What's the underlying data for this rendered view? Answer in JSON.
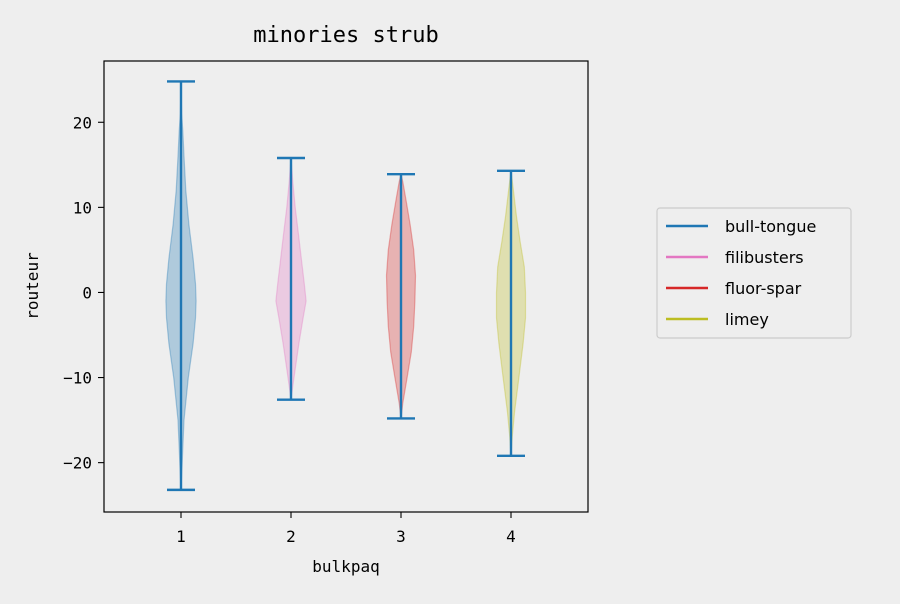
{
  "chart_data": {
    "type": "violin",
    "title": "minories strub",
    "xlabel": "bulkpaq",
    "ylabel": "routeur",
    "x_ticks": [
      "1",
      "2",
      "3",
      "4"
    ],
    "y_ticks": [
      -20,
      -10,
      0,
      10,
      20
    ],
    "ylim": [
      -25.8,
      27.2
    ],
    "xlim": [
      0.3,
      4.7
    ],
    "grid": false,
    "legend_position": "right",
    "series": [
      {
        "name": "bull-tongue",
        "position": 1,
        "color": "#1f77b4",
        "fill": "#1f77b4",
        "max": 24.8,
        "min": -23.2,
        "density": [
          [
            -23.2,
            0
          ],
          [
            -20,
            0.02
          ],
          [
            -15,
            0.05
          ],
          [
            -10,
            0.12
          ],
          [
            -6,
            0.2
          ],
          [
            -3,
            0.24
          ],
          [
            -1,
            0.25
          ],
          [
            1,
            0.24
          ],
          [
            4,
            0.2
          ],
          [
            8,
            0.13
          ],
          [
            12,
            0.08
          ],
          [
            16,
            0.05
          ],
          [
            19,
            0.03
          ],
          [
            21,
            0.01
          ],
          [
            24.8,
            0
          ]
        ]
      },
      {
        "name": "filibusters",
        "position": 2,
        "color": "#e377c2",
        "fill": "#e377c2",
        "max": 15.8,
        "min": -12.6,
        "density": [
          [
            -12.6,
            0
          ],
          [
            -11,
            0.03
          ],
          [
            -9,
            0.07
          ],
          [
            -6,
            0.13
          ],
          [
            -3,
            0.2
          ],
          [
            -1,
            0.25
          ],
          [
            1,
            0.22
          ],
          [
            4,
            0.17
          ],
          [
            7,
            0.12
          ],
          [
            10,
            0.07
          ],
          [
            13,
            0.03
          ],
          [
            15.8,
            0
          ]
        ]
      },
      {
        "name": "fluor-spar",
        "position": 3,
        "color": "#d62728",
        "fill": "#d62728",
        "max": 13.9,
        "min": -14.8,
        "density": [
          [
            -14.8,
            0
          ],
          [
            -13,
            0.03
          ],
          [
            -10,
            0.1
          ],
          [
            -7,
            0.17
          ],
          [
            -4,
            0.21
          ],
          [
            -1,
            0.23
          ],
          [
            2,
            0.24
          ],
          [
            5,
            0.21
          ],
          [
            8,
            0.15
          ],
          [
            11,
            0.08
          ],
          [
            13,
            0.03
          ],
          [
            13.9,
            0
          ]
        ]
      },
      {
        "name": "limey",
        "position": 4,
        "color": "#bcbd22",
        "fill": "#bcbd22",
        "max": 14.3,
        "min": -19.2,
        "density": [
          [
            -19.2,
            0
          ],
          [
            -17,
            0.02
          ],
          [
            -14,
            0.06
          ],
          [
            -10,
            0.13
          ],
          [
            -6,
            0.2
          ],
          [
            -3,
            0.24
          ],
          [
            0,
            0.24
          ],
          [
            3,
            0.22
          ],
          [
            6,
            0.15
          ],
          [
            9,
            0.09
          ],
          [
            12,
            0.04
          ],
          [
            14.3,
            0
          ]
        ]
      }
    ],
    "extrema_color": "#1f77b4"
  }
}
